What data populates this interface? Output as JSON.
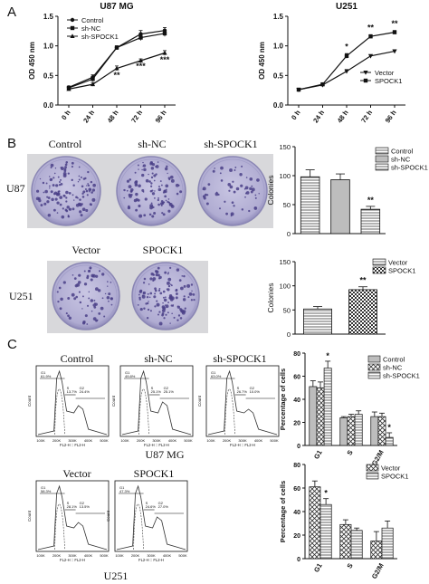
{
  "panels": {
    "A": "A",
    "B": "B",
    "C": "C"
  },
  "panelA": {
    "time_labels": [
      "0 h",
      "24 h",
      "48 h",
      "72 h",
      "96 h"
    ]
  },
  "panelB": {
    "u87_plates": [
      "Control",
      "sh-NC",
      "sh-SPOCK1"
    ],
    "u87_row_label": "U87 MG",
    "u251_plates": [
      "Vector",
      "SPOCK1"
    ],
    "u251_row_label": "U251"
  },
  "panelC": {
    "u87_titles": [
      "Control",
      "sh-NC",
      "sh-SPOCK1"
    ],
    "u87_row_label": "U87 MG",
    "u251_titles": [
      "Vector",
      "SPOCK1"
    ],
    "u251_row_label": "U251",
    "hist_ylabel": "Count",
    "hist_xlabel": "FL2-H :: FL2-H",
    "hist_ticks": [
      "100K",
      "200K",
      "300K",
      "400K",
      "500K"
    ],
    "hist_gates": [
      {
        "g1": "G1",
        "g1v": "61.9%",
        "s": "S",
        "sv": "13.7%",
        "g2": "G2",
        "g2v": "24.4%"
      },
      {
        "g1": "G1",
        "g1v": "49.8%",
        "s": "S",
        "sv": "25.1%",
        "g2": "G2",
        "g2v": "25.1%"
      },
      {
        "g1": "G1",
        "g1v": "63.0%",
        "s": "S",
        "sv": "26.7%",
        "g2": "G2",
        "g2v": "10.0%"
      },
      {
        "g1": "G1",
        "g1v": "58.3%",
        "s": "S",
        "sv": "28.1%",
        "g2": "G2",
        "g2v": "13.5%"
      },
      {
        "g1": "G1",
        "g1v": "47.3%",
        "s": "S",
        "sv": "24.6%",
        "g2": "G2",
        "g2v": "27.0%"
      }
    ]
  },
  "chart_data": [
    {
      "id": "u87-growth",
      "type": "line",
      "title": "U87 MG",
      "xlabel": "",
      "ylabel": "OD 450 nm",
      "categories": [
        "0 h",
        "24 h",
        "48 h",
        "72 h",
        "96 h"
      ],
      "ylim": [
        0.0,
        1.5
      ],
      "yticks": [
        "0.0",
        "0.5",
        "1.0",
        "1.5"
      ],
      "series": [
        {
          "name": "Control",
          "values": [
            0.3,
            0.47,
            0.97,
            1.2,
            1.26
          ],
          "err": [
            0.02,
            0.04,
            0.03,
            0.06,
            0.05
          ]
        },
        {
          "name": "sh-NC",
          "values": [
            0.29,
            0.44,
            0.97,
            1.14,
            1.21
          ],
          "err": [
            0.02,
            0.04,
            0.03,
            0.05,
            0.05
          ]
        },
        {
          "name": "sh-SPOCK1",
          "values": [
            0.27,
            0.35,
            0.62,
            0.75,
            0.88
          ],
          "err": [
            0.02,
            0.03,
            0.04,
            0.03,
            0.04
          ]
        }
      ],
      "annotations": [
        {
          "x": "48 h",
          "text": "**",
          "y": 0.46
        },
        {
          "x": "72 h",
          "text": "***",
          "y": 0.61
        },
        {
          "x": "96 h",
          "text": "***",
          "y": 0.72
        }
      ],
      "legend": "top-left"
    },
    {
      "id": "u251-growth",
      "type": "line",
      "title": "U251",
      "xlabel": "",
      "ylabel": "OD 450 nm",
      "categories": [
        "0 h",
        "24 h",
        "48 h",
        "72 h",
        "96 h"
      ],
      "ylim": [
        0.0,
        1.5
      ],
      "yticks": [
        "0.0",
        "0.5",
        "1.0",
        "1.5"
      ],
      "series": [
        {
          "name": "Vector",
          "values": [
            0.26,
            0.34,
            0.57,
            0.83,
            0.91
          ],
          "err": [
            0.02,
            0.02,
            0.03,
            0.02,
            0.02
          ]
        },
        {
          "name": "SPOCK1",
          "values": [
            0.26,
            0.35,
            0.83,
            1.16,
            1.23
          ],
          "err": [
            0.02,
            0.02,
            0.04,
            0.03,
            0.03
          ]
        }
      ],
      "annotations": [
        {
          "x": "48 h",
          "text": "*",
          "y": 0.94
        },
        {
          "x": "72 h",
          "text": "**",
          "y": 1.26
        },
        {
          "x": "96 h",
          "text": "**",
          "y": 1.33
        }
      ],
      "legend": "bottom-right"
    },
    {
      "id": "u87-colonies",
      "type": "bar",
      "xlabel": "",
      "ylabel": "Colonies",
      "series": [
        {
          "name": "Control",
          "value": 98,
          "err": 12
        },
        {
          "name": "sh-NC",
          "value": 93,
          "err": 10
        },
        {
          "name": "sh-SPOCK1",
          "value": 42,
          "err": 5
        }
      ],
      "ylim": [
        0,
        150
      ],
      "yticks": [
        "0",
        "50",
        "100",
        "150"
      ],
      "annotations": [
        {
          "series": "sh-SPOCK1",
          "text": "**"
        }
      ],
      "legend": "top-right"
    },
    {
      "id": "u251-colonies",
      "type": "bar",
      "xlabel": "",
      "ylabel": "Colonies",
      "series": [
        {
          "name": "Vector",
          "value": 52,
          "err": 5
        },
        {
          "name": "SPOCK1",
          "value": 92,
          "err": 6
        }
      ],
      "ylim": [
        0,
        150
      ],
      "yticks": [
        "0",
        "50",
        "100",
        "150"
      ],
      "annotations": [
        {
          "series": "SPOCK1",
          "text": "**"
        }
      ],
      "legend": "top-right"
    },
    {
      "id": "u87-cellcycle",
      "type": "bar",
      "xlabel": "",
      "ylabel": "Percentage of cells",
      "categories": [
        "G1",
        "S",
        "G2/M"
      ],
      "series": [
        {
          "name": "Control",
          "values": [
            51,
            24,
            25
          ],
          "err": [
            5,
            1,
            4
          ]
        },
        {
          "name": "sh-NC",
          "values": [
            50,
            25,
            25
          ],
          "err": [
            5,
            2,
            3
          ]
        },
        {
          "name": "sh-SPOCK1",
          "values": [
            67,
            27,
            7
          ],
          "err": [
            6,
            3,
            4
          ]
        }
      ],
      "ylim": [
        0,
        80
      ],
      "yticks": [
        "0",
        "20",
        "40",
        "60",
        "80"
      ],
      "annotations": [
        {
          "category": "G1",
          "series": "sh-SPOCK1",
          "text": "*"
        },
        {
          "category": "G2/M",
          "series": "sh-SPOCK1",
          "text": "*"
        }
      ],
      "legend": "top-right"
    },
    {
      "id": "u251-cellcycle",
      "type": "bar",
      "xlabel": "",
      "ylabel": "Percentage of cells",
      "categories": [
        "G1",
        "S",
        "G2/M"
      ],
      "series": [
        {
          "name": "Vector",
          "values": [
            61,
            29,
            15
          ],
          "err": [
            5,
            4,
            8
          ]
        },
        {
          "name": "SPOCK1",
          "values": [
            46,
            24,
            26
          ],
          "err": [
            5,
            2,
            6
          ]
        }
      ],
      "ylim": [
        0,
        80
      ],
      "yticks": [
        "0",
        "20",
        "40",
        "60",
        "80"
      ],
      "annotations": [
        {
          "category": "G1",
          "series": "SPOCK1",
          "text": "*"
        }
      ],
      "legend": "top-right"
    }
  ],
  "colors": {
    "plate": "#b7b4d6",
    "plate_rim": "#8f8bb5",
    "colony": "#4b3f86",
    "photo_bg": "#d9d9dc",
    "bar_fill_light": "#e2e2e2",
    "bar_fill_mid": "#bcbcbc",
    "line": "#111111"
  }
}
